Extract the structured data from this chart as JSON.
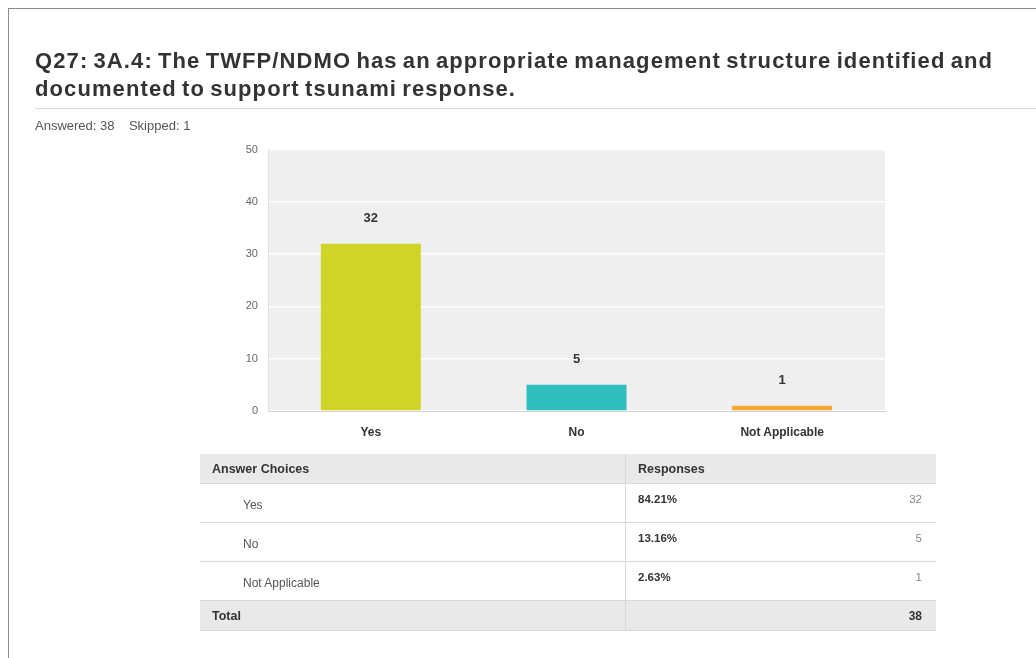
{
  "chart_data": {
    "type": "bar",
    "title": "Q27: 3A.4: The TWFP/NDMO has an appropriate management structure identified and documented to support tsunami response.",
    "subtitle": "Answered: 38    Skipped: 1",
    "categories": [
      "Yes",
      "No",
      "Not Applicable"
    ],
    "values": [
      32,
      5,
      1
    ],
    "colors": [
      "#cfd427",
      "#30bdbe",
      "#f2a82e"
    ],
    "ylim": [
      0,
      50
    ],
    "yticks": [
      0,
      10,
      20,
      30,
      40,
      50
    ],
    "grid": "y",
    "legend": false,
    "data_labels": true,
    "annotations": [
      "Answer Choices",
      "Responses",
      "84.21%",
      "32",
      "13.16%",
      "5",
      "2.63%",
      "1",
      "Total",
      "38"
    ]
  }
}
